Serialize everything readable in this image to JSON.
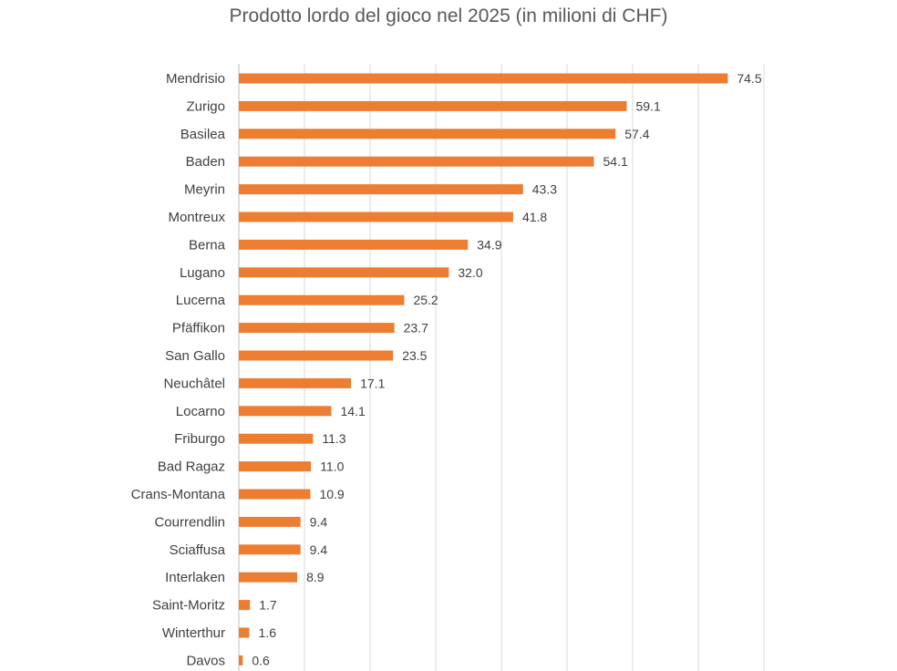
{
  "chart_data": {
    "type": "bar",
    "orientation": "horizontal",
    "title": "Prodotto lordo del gioco nel 2025 (in milioni di CHF)",
    "xlabel": "",
    "ylabel": "",
    "xlim": [
      0,
      80
    ],
    "grid": true,
    "legend": "none",
    "bar_color": "#ED7D31",
    "categories": [
      "Mendrisio",
      "Zurigo",
      "Basilea",
      "Baden",
      "Meyrin",
      "Montreux",
      "Berna",
      "Lugano",
      "Lucerna",
      "Pfäffikon",
      "San Gallo",
      "Neuchâtel",
      "Locarno",
      "Friburgo",
      "Bad Ragaz",
      "Crans-Montana",
      "Courrendlin",
      "Sciaffusa",
      "Interlaken",
      "Saint-Moritz",
      "Winterthur",
      "Davos"
    ],
    "values": [
      74.5,
      59.1,
      57.4,
      54.1,
      43.3,
      41.8,
      34.9,
      32.0,
      25.2,
      23.7,
      23.5,
      17.1,
      14.1,
      11.3,
      11.0,
      10.9,
      9.4,
      9.4,
      8.9,
      1.7,
      1.6,
      0.6
    ],
    "data_labels": [
      "74.5",
      "59.1",
      "57.4",
      "54.1",
      "43.3",
      "41.8",
      "34.9",
      "32.0",
      "25.2",
      "23.7",
      "23.5",
      "17.1",
      "14.1",
      "11.3",
      "11.0",
      "10.9",
      "9.4",
      "9.4",
      "8.9",
      "1.7",
      "1.6",
      "0.6"
    ]
  }
}
